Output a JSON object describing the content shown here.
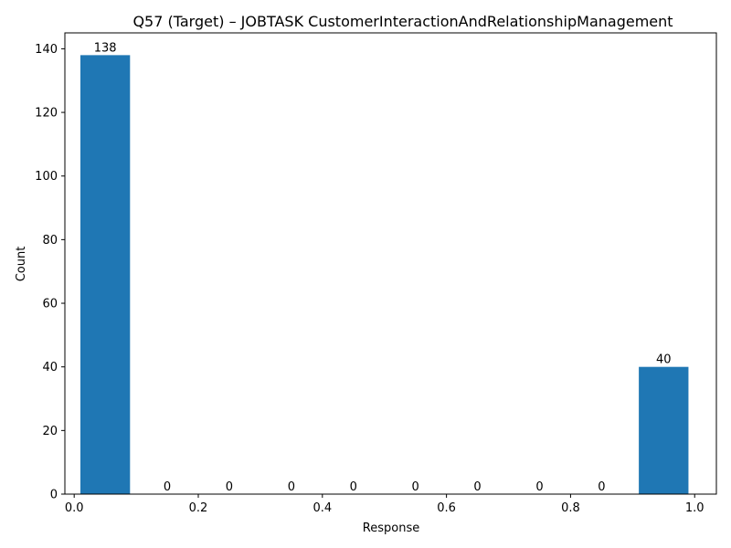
{
  "chart_data": {
    "type": "bar",
    "title": "Q57 (Target) – JOBTASK CustomerInteractionAndRelationshipManagement",
    "xlabel": "Response",
    "ylabel": "Count",
    "bins": [
      {
        "start": 0.0,
        "end": 0.1,
        "value": 138
      },
      {
        "start": 0.1,
        "end": 0.2,
        "value": 0
      },
      {
        "start": 0.2,
        "end": 0.3,
        "value": 0
      },
      {
        "start": 0.3,
        "end": 0.4,
        "value": 0
      },
      {
        "start": 0.4,
        "end": 0.5,
        "value": 0
      },
      {
        "start": 0.5,
        "end": 0.6,
        "value": 0
      },
      {
        "start": 0.6,
        "end": 0.7,
        "value": 0
      },
      {
        "start": 0.7,
        "end": 0.8,
        "value": 0
      },
      {
        "start": 0.8,
        "end": 0.9,
        "value": 0
      },
      {
        "start": 0.9,
        "end": 1.0,
        "value": 40
      }
    ],
    "bar_width_fraction": 0.8,
    "xlim": [
      -0.015,
      1.035
    ],
    "ylim": [
      0,
      145
    ],
    "xticks": [
      0.0,
      0.2,
      0.4,
      0.6,
      0.8,
      1.0
    ],
    "xtick_labels": [
      "0.0",
      "0.2",
      "0.4",
      "0.6",
      "0.8",
      "1.0"
    ],
    "yticks": [
      0,
      20,
      40,
      60,
      80,
      100,
      120,
      140
    ],
    "ytick_labels": [
      "0",
      "20",
      "40",
      "60",
      "80",
      "100",
      "120",
      "140"
    ],
    "bar_color": "#1f77b4",
    "grid": false,
    "legend": "none"
  }
}
